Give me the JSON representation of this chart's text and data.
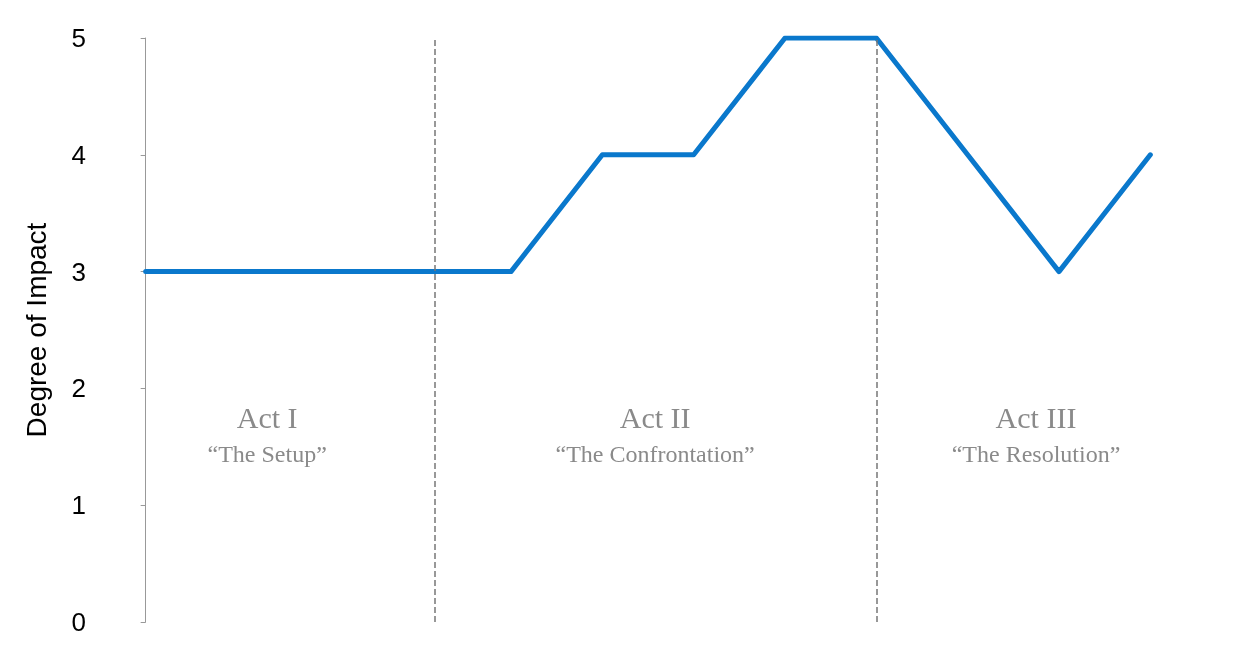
{
  "chart_data": {
    "type": "line",
    "ylabel": "Degree of Impact",
    "categories": [
      null,
      null,
      null,
      null,
      null,
      null,
      null,
      null,
      null,
      null,
      null,
      null
    ],
    "series": [
      {
        "color": "#0a78cc",
        "values": [
          3,
          3,
          3,
          3,
          3,
          4,
          4,
          5,
          5,
          4,
          3,
          4
        ]
      }
    ],
    "ylim": [
      0,
      5
    ],
    "yticks": [
      0,
      1,
      2,
      3,
      4,
      5
    ],
    "tick_labels": "y",
    "grid": false,
    "marker": "none",
    "line_style": "solid",
    "annotations": [
      "Act I\n“The Setup”",
      "Act II\n“The Confrontation”",
      "Act III\n“The Resolution”"
    ]
  }
}
